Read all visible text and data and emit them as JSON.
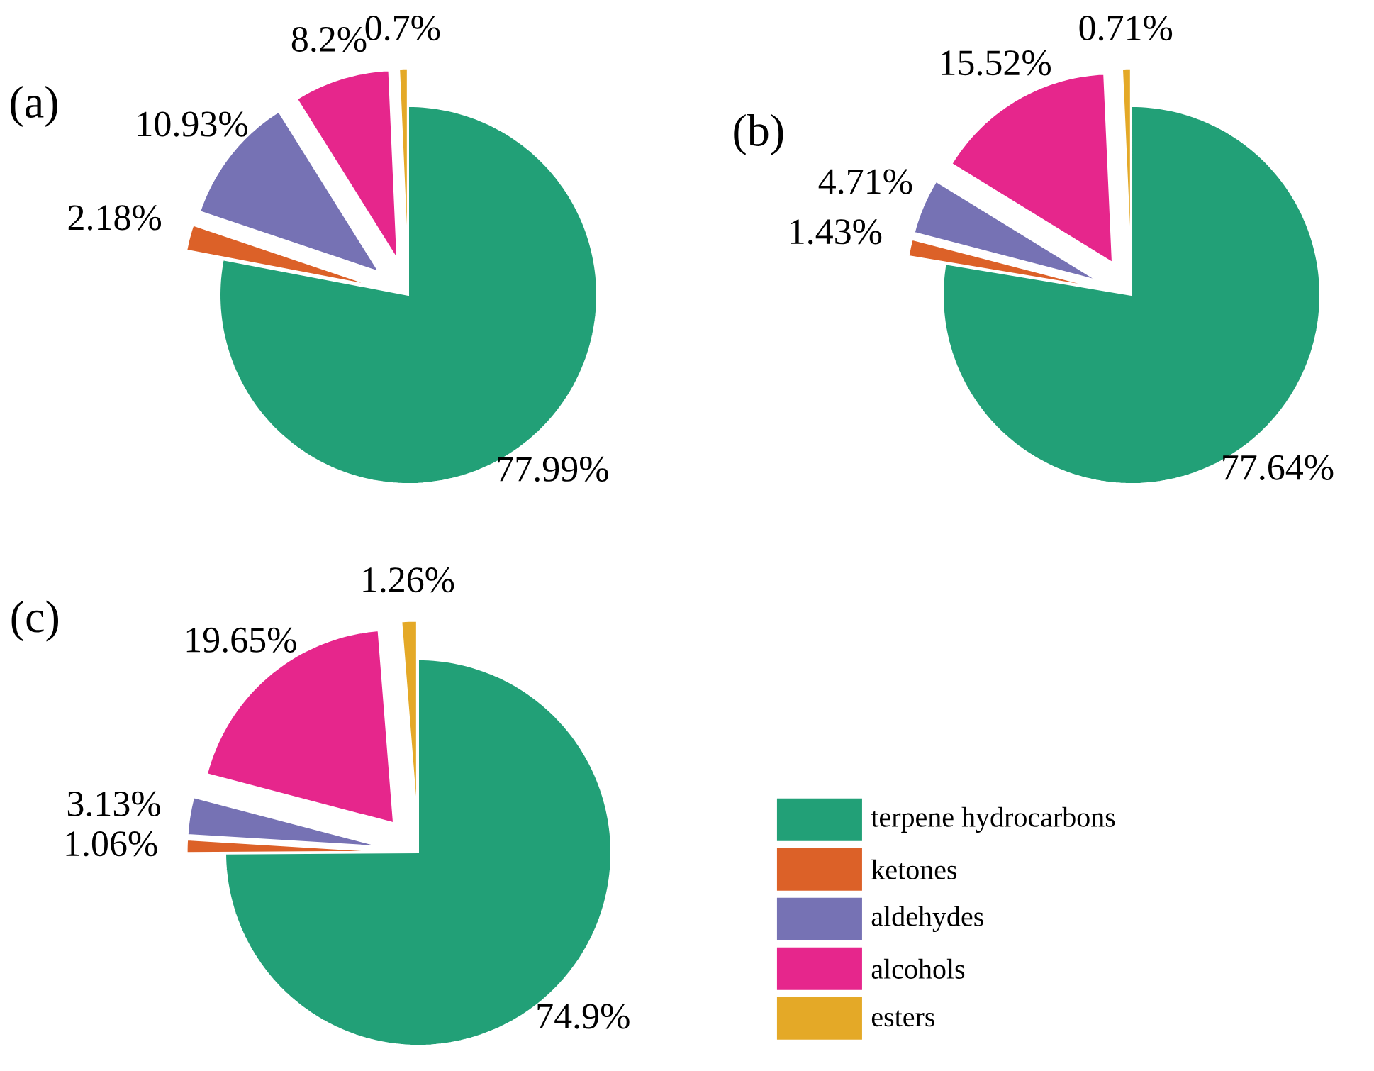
{
  "chart_data": [
    {
      "type": "pie",
      "title": "(a)",
      "categories": [
        null,
        null,
        null,
        null,
        null
      ],
      "values": [
        77.99,
        2.18,
        10.93,
        8.2,
        0.7
      ],
      "value_labels": [
        "77.99%",
        "2.18%",
        "10.93%",
        "8.2%",
        "0.7%"
      ],
      "colors": [
        "#22a077",
        "#dc6128",
        "#7672b4",
        "#e6268c",
        "#e4a927"
      ]
    },
    {
      "type": "pie",
      "title": "(b)",
      "categories": [
        null,
        null,
        null,
        null,
        null
      ],
      "values": [
        77.64,
        1.43,
        4.71,
        15.52,
        0.71
      ],
      "value_labels": [
        "77.64%",
        "1.43%",
        "4.71%",
        "15.52%",
        "0.71%"
      ],
      "colors": [
        "#22a077",
        "#dc6128",
        "#7672b4",
        "#e6268c",
        "#e4a927"
      ]
    },
    {
      "type": "pie",
      "title": "(c)",
      "categories": [
        "terpene hydrocarbons",
        "ketones",
        "aldehydes",
        "alcohols",
        "esters"
      ],
      "values": [
        74.9,
        1.06,
        3.13,
        19.65,
        1.26
      ],
      "value_labels": [
        "74.9%",
        "1.06%",
        "3.13%",
        "19.65%",
        "1.26%"
      ],
      "colors": [
        "#22a077",
        "#dc6128",
        "#7672b4",
        "#e6268c",
        "#e4a927"
      ],
      "legend": "right"
    }
  ]
}
